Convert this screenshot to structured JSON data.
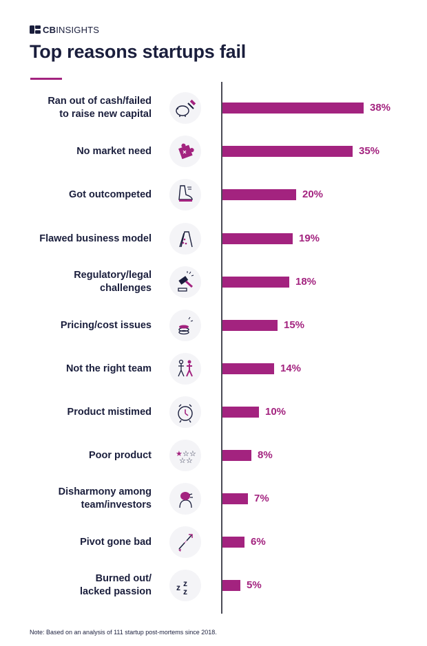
{
  "brand": {
    "name_bold": "CB",
    "name_rest": "INSIGHTS"
  },
  "chart_data": {
    "type": "bar",
    "orientation": "horizontal",
    "title": "Top reasons startups fail",
    "categories": [
      "Ran out of cash/failed to raise new capital",
      "No market need",
      "Got outcompeted",
      "Flawed business model",
      "Regulatory/legal challenges",
      "Pricing/cost issues",
      "Not the right team",
      "Product mistimed",
      "Poor product",
      "Disharmony among team/investors",
      "Pivot gone bad",
      "Burned out/ lacked passion"
    ],
    "label_lines": [
      [
        "Ran out of cash/failed",
        "to raise new capital"
      ],
      [
        "No market need"
      ],
      [
        "Got outcompeted"
      ],
      [
        "Flawed business model"
      ],
      [
        "Regulatory/legal",
        "challenges"
      ],
      [
        "Pricing/cost issues"
      ],
      [
        "Not the right team"
      ],
      [
        "Product mistimed"
      ],
      [
        "Poor product"
      ],
      [
        "Disharmony among",
        "team/investors"
      ],
      [
        "Pivot gone bad"
      ],
      [
        "Burned out/",
        "lacked passion"
      ]
    ],
    "values": [
      38,
      35,
      20,
      19,
      18,
      15,
      14,
      10,
      8,
      7,
      6,
      5
    ],
    "value_labels": [
      "38%",
      "35%",
      "20%",
      "19%",
      "18%",
      "15%",
      "14%",
      "10%",
      "8%",
      "7%",
      "6%",
      "5%"
    ],
    "icons": [
      "piggy-bank-hammer-icon",
      "puzzle-piece-icon",
      "running-shoe-icon",
      "house-of-cards-icon",
      "gavel-icon",
      "coin-stack-icon",
      "team-people-icon",
      "alarm-clock-icon",
      "star-rating-icon",
      "frustrated-person-icon",
      "broken-arrow-icon",
      "sleeping-zzz-icon"
    ],
    "bar_color": "#a3237f",
    "xlim": [
      0,
      38
    ],
    "grid": false,
    "legend": "none"
  },
  "footnote": "Note: Based on an analysis of 111 startup post-mortems since 2018."
}
